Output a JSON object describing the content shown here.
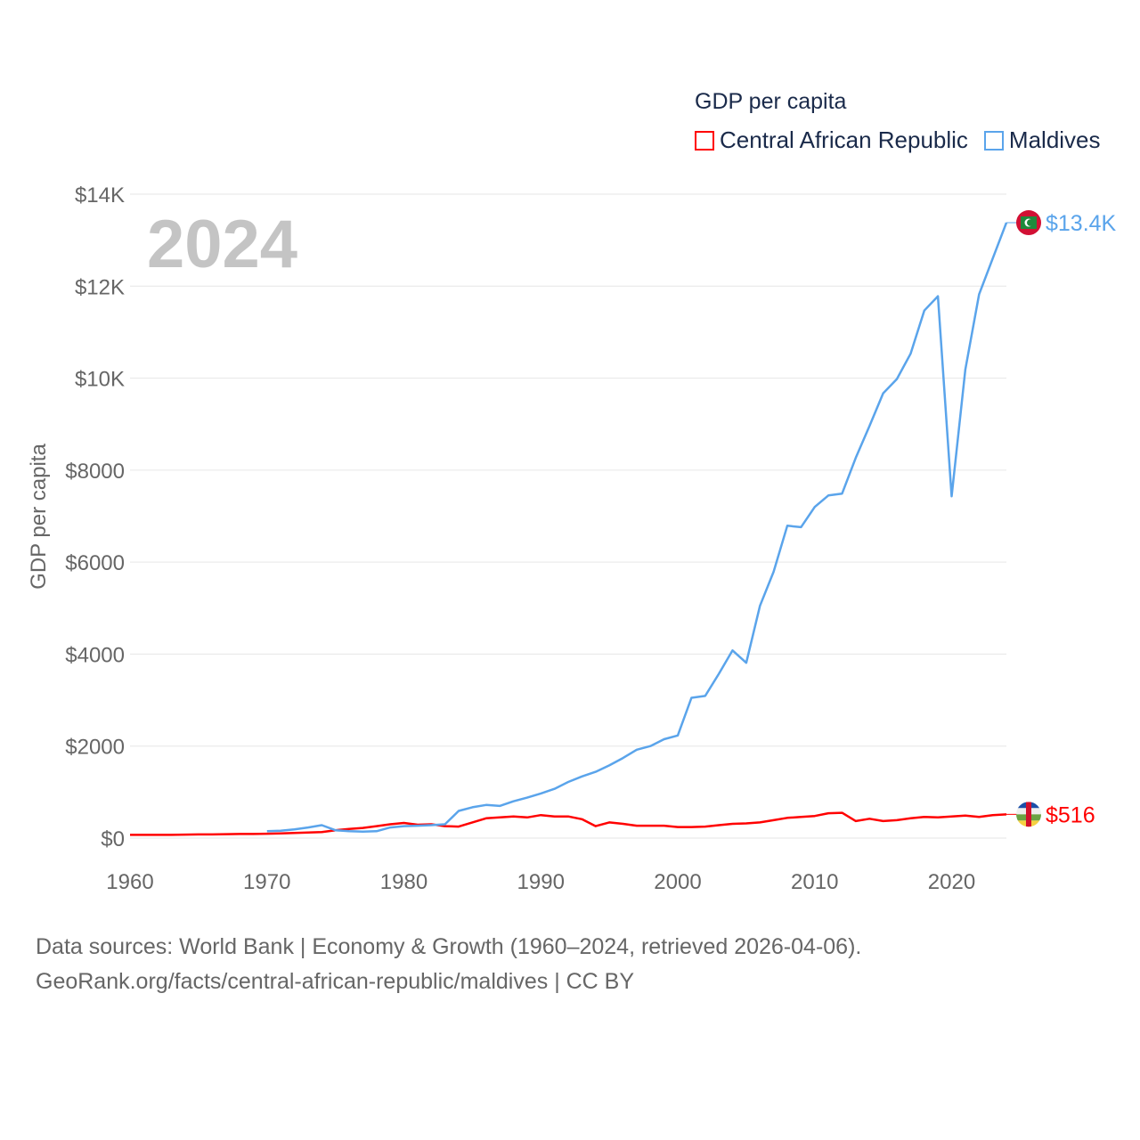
{
  "chart_data": {
    "type": "line",
    "title": "GDP per capita",
    "ylabel": "GDP per capita",
    "xlabel": "",
    "year_label": "2024",
    "xlim": [
      1960,
      2024
    ],
    "ylim": [
      0,
      14000
    ],
    "x_ticks": [
      1960,
      1970,
      1980,
      1990,
      2000,
      2010,
      2020
    ],
    "x_tick_labels": [
      "1960",
      "1970",
      "1980",
      "1990",
      "2000",
      "2010",
      "2020"
    ],
    "y_ticks": [
      0,
      2000,
      4000,
      6000,
      8000,
      10000,
      12000,
      14000
    ],
    "y_tick_labels": [
      "$0",
      "$2000",
      "$4000",
      "$6000",
      "$8000",
      "$10K",
      "$12K",
      "$14K"
    ],
    "grid": true,
    "legend_placement": "top-right",
    "series": [
      {
        "name": "Central African Republic",
        "color": "#ff0000",
        "end_label": "$516",
        "start_year": 1960,
        "values": [
          70,
          70,
          70,
          70,
          75,
          80,
          80,
          85,
          90,
          90,
          95,
          100,
          110,
          120,
          130,
          170,
          200,
          220,
          260,
          300,
          330,
          290,
          300,
          260,
          250,
          340,
          430,
          450,
          470,
          450,
          500,
          470,
          470,
          410,
          260,
          340,
          310,
          270,
          270,
          270,
          240,
          240,
          250,
          280,
          310,
          320,
          340,
          390,
          440,
          460,
          480,
          540,
          550,
          370,
          420,
          370,
          390,
          430,
          460,
          450,
          470,
          490,
          460,
          500,
          516
        ]
      },
      {
        "name": "Maldives",
        "color": "#5aa4eb",
        "end_label": "$13.4K",
        "start_year": 1970,
        "values": [
          150,
          160,
          190,
          230,
          280,
          170,
          150,
          140,
          150,
          230,
          260,
          270,
          280,
          300,
          590,
          670,
          720,
          700,
          800,
          880,
          970,
          1070,
          1220,
          1340,
          1440,
          1580,
          1740,
          1920,
          2000,
          2150,
          2230,
          3050,
          3090,
          3570,
          4080,
          3810,
          5050,
          5790,
          6790,
          6760,
          7200,
          7450,
          7490,
          8270,
          8960,
          9670,
          9980,
          10530,
          11470,
          11780,
          7430,
          10190,
          11820,
          12600,
          13380
        ]
      }
    ]
  },
  "footer": {
    "line1": "Data sources: World Bank | Economy & Growth (1960–2024, retrieved 2026-04-06).",
    "line2": "GeoRank.org/facts/central-african-republic/maldives | CC BY"
  }
}
